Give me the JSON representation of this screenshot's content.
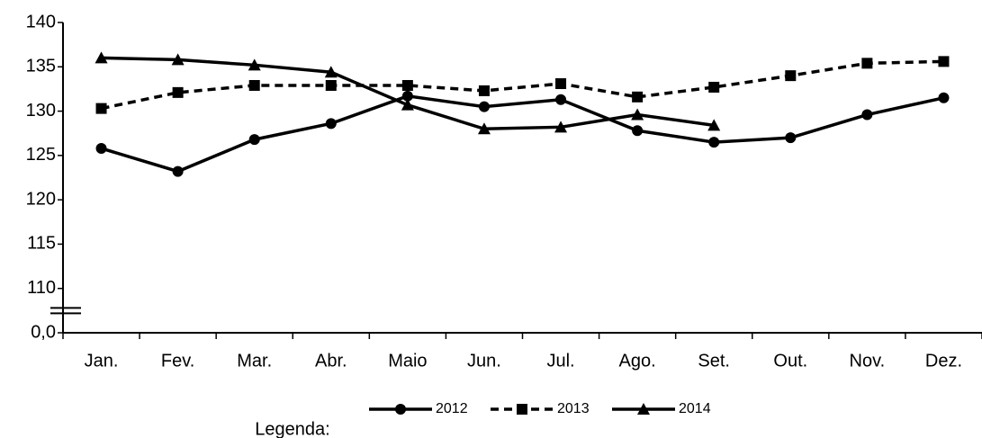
{
  "chart_data": {
    "type": "line",
    "categories": [
      "Jan.",
      "Fev.",
      "Mar.",
      "Abr.",
      "Maio",
      "Jun.",
      "Jul.",
      "Ago.",
      "Set.",
      "Out.",
      "Nov.",
      "Dez."
    ],
    "series": [
      {
        "name": "2012",
        "color": "#000000",
        "marker": "circle",
        "dash": false,
        "values": [
          125.8,
          123.2,
          126.8,
          128.6,
          131.7,
          130.5,
          131.3,
          127.8,
          126.5,
          127.0,
          129.6,
          131.5
        ]
      },
      {
        "name": "2013",
        "color": "#000000",
        "marker": "square",
        "dash": true,
        "values": [
          130.3,
          132.1,
          132.9,
          132.9,
          132.9,
          132.3,
          133.1,
          131.6,
          132.7,
          134.0,
          135.4,
          135.6
        ]
      },
      {
        "name": "2014",
        "color": "#000000",
        "marker": "triangle",
        "dash": false,
        "values": [
          136.0,
          135.8,
          135.2,
          134.4,
          130.7,
          128.0,
          128.2,
          129.6,
          128.4,
          null,
          null,
          null
        ]
      }
    ],
    "ylim": [
      0,
      140
    ],
    "axis_break": [
      0,
      110
    ],
    "yticks": [
      {
        "value": 0,
        "label": "0,0"
      },
      110,
      115,
      120,
      125,
      130,
      135,
      140
    ],
    "legend_title": "Legenda:",
    "legend_position": "bottom"
  }
}
